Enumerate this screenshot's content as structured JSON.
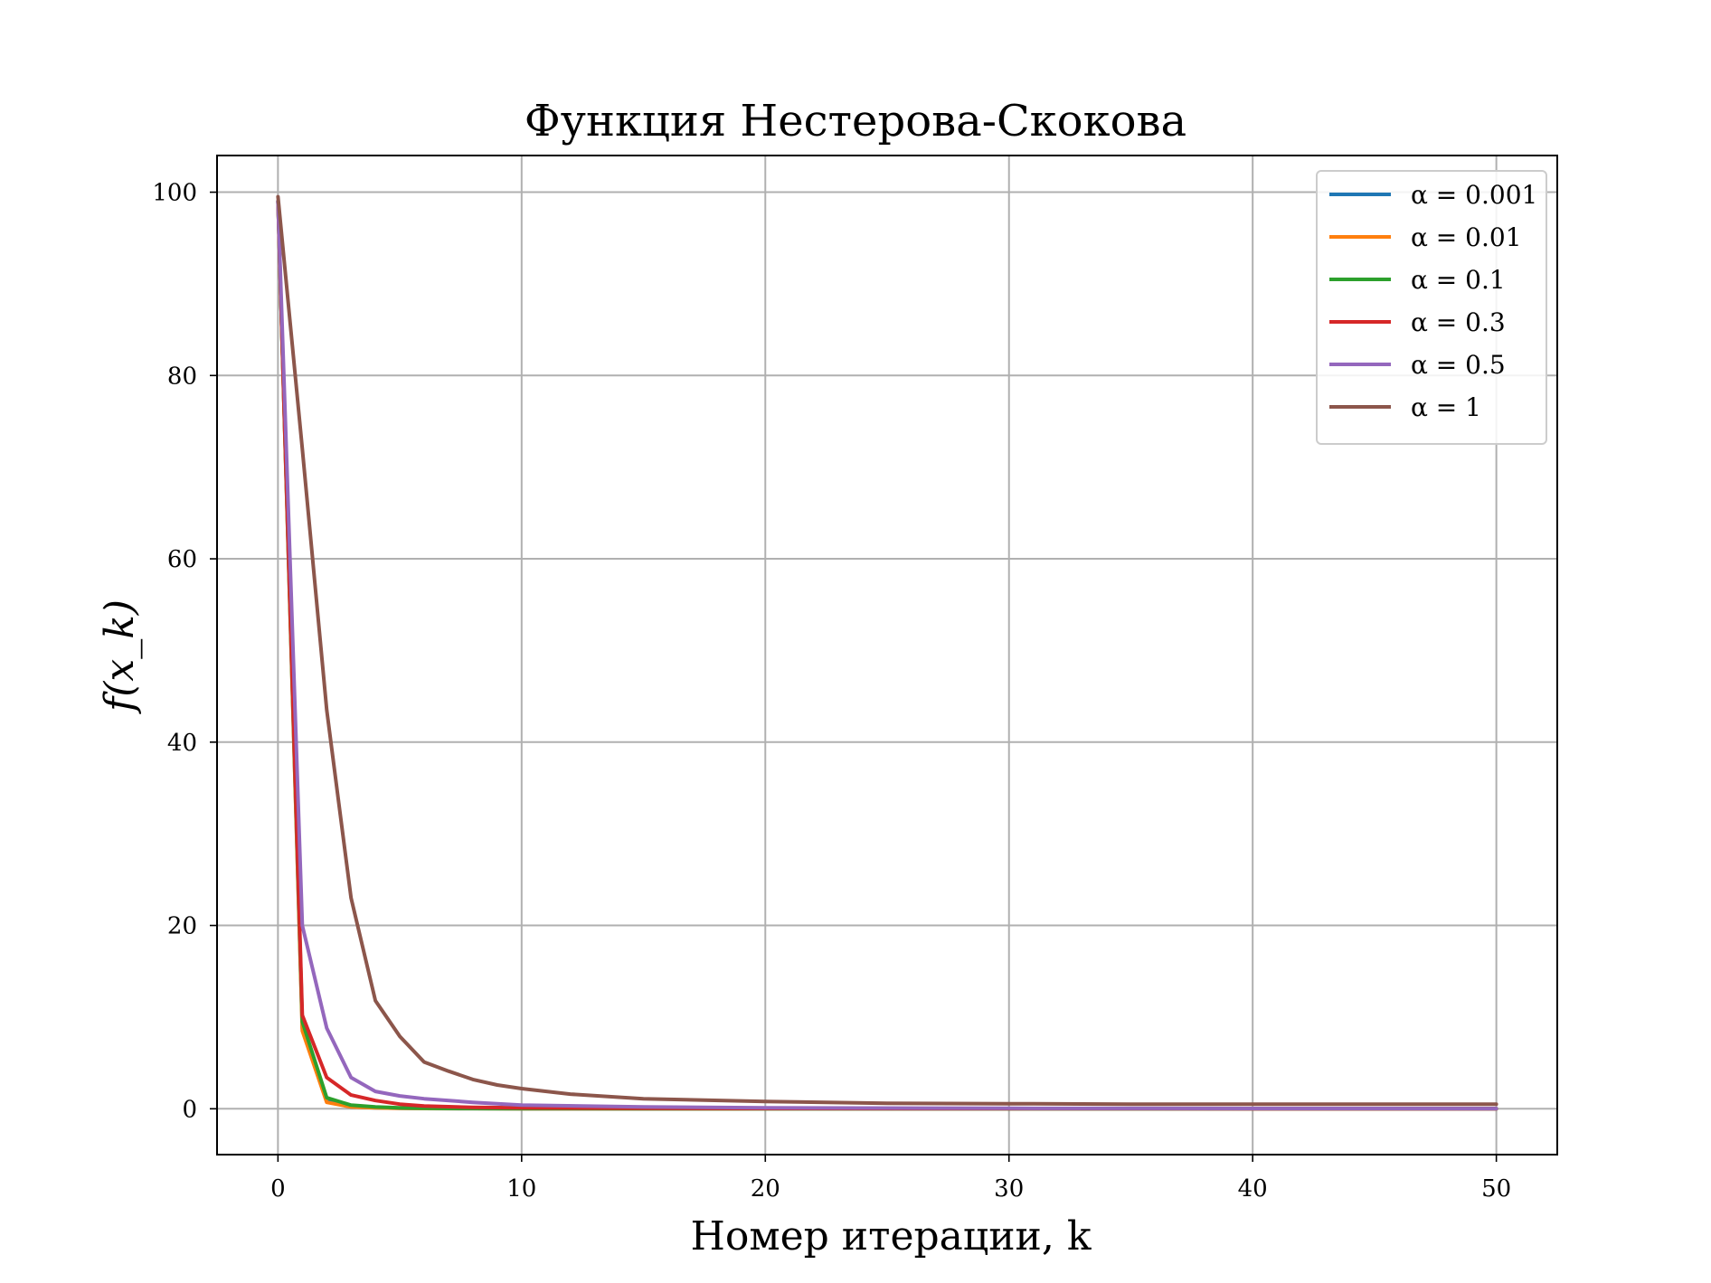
{
  "chart_data": {
    "type": "line",
    "title": "Функция Нестерова-Скокова",
    "xlabel": "Номер итерации, k",
    "ylabel": "f(x_k)",
    "xlim": [
      -2.5,
      52.5
    ],
    "ylim": [
      -5,
      104
    ],
    "xticks": [
      0,
      10,
      20,
      30,
      40,
      50
    ],
    "yticks": [
      0,
      20,
      40,
      60,
      80,
      100
    ],
    "grid": true,
    "legend_position": "top-right",
    "series": [
      {
        "name": "α = 0.001",
        "color": "#1f77b4",
        "x": [
          0,
          1,
          2,
          3,
          4,
          5,
          6,
          8,
          10,
          15,
          20,
          30,
          40,
          50
        ],
        "y": [
          99,
          8.8,
          0.8,
          0.2,
          0.1,
          0.05,
          0.03,
          0.02,
          0.01,
          0.01,
          0.01,
          0.0,
          0.0,
          0.0
        ]
      },
      {
        "name": "α = 0.01",
        "color": "#ff7f0e",
        "x": [
          0,
          1,
          2,
          3,
          4,
          5,
          6,
          8,
          10,
          15,
          20,
          30,
          40,
          50
        ],
        "y": [
          99,
          8.5,
          0.7,
          0.2,
          0.1,
          0.05,
          0.03,
          0.02,
          0.01,
          0.01,
          0.01,
          0.0,
          0.0,
          0.0
        ]
      },
      {
        "name": "α = 0.1",
        "color": "#2ca02c",
        "x": [
          0,
          1,
          2,
          3,
          4,
          5,
          6,
          8,
          10,
          15,
          20,
          30,
          40,
          50
        ],
        "y": [
          99,
          9.5,
          1.2,
          0.4,
          0.2,
          0.1,
          0.05,
          0.03,
          0.02,
          0.01,
          0.01,
          0.0,
          0.0,
          0.0
        ]
      },
      {
        "name": "α = 0.3",
        "color": "#d62728",
        "x": [
          0,
          1,
          2,
          3,
          4,
          5,
          6,
          8,
          10,
          15,
          20,
          30,
          40,
          50
        ],
        "y": [
          99,
          10.2,
          3.4,
          1.5,
          0.9,
          0.5,
          0.3,
          0.15,
          0.1,
          0.05,
          0.03,
          0.02,
          0.01,
          0.01
        ]
      },
      {
        "name": "α = 0.5",
        "color": "#9467bd",
        "x": [
          0,
          1,
          2,
          3,
          4,
          5,
          6,
          8,
          10,
          15,
          20,
          30,
          40,
          50
        ],
        "y": [
          99,
          20,
          8.8,
          3.4,
          1.9,
          1.4,
          1.1,
          0.7,
          0.4,
          0.2,
          0.1,
          0.05,
          0.03,
          0.02
        ]
      },
      {
        "name": "α = 1",
        "color": "#8c564b",
        "x": [
          0,
          1,
          2,
          3,
          4,
          5,
          6,
          7,
          8,
          9,
          10,
          12,
          15,
          20,
          25,
          30,
          35,
          40,
          45,
          50
        ],
        "y": [
          99.5,
          72,
          43.5,
          23,
          11.8,
          7.9,
          5.1,
          4.1,
          3.2,
          2.6,
          2.2,
          1.6,
          1.1,
          0.8,
          0.6,
          0.55,
          0.5,
          0.5,
          0.5,
          0.5
        ]
      }
    ]
  }
}
